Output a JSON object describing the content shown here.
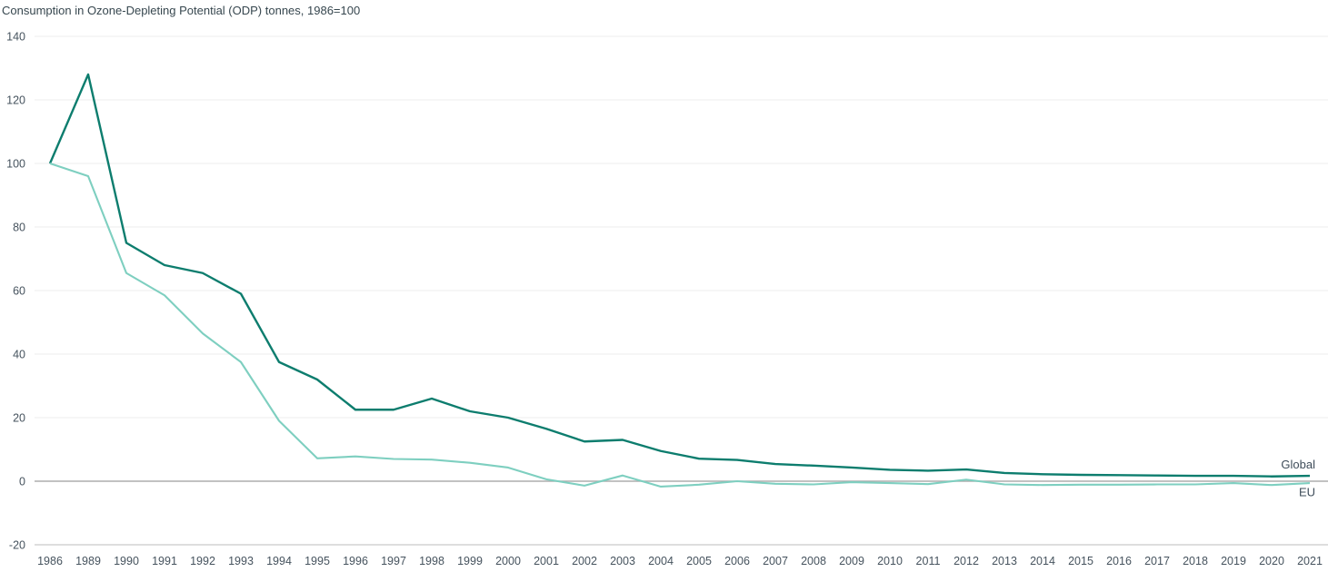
{
  "page": {
    "title": "Consumption in Ozone-Depleting Potential (ODP) tonnes, 1986=100"
  },
  "chart_data": {
    "type": "line",
    "title": "Consumption in Ozone-Depleting Potential (ODP) tonnes, 1986=100",
    "categories": [
      "1986",
      "1989",
      "1990",
      "1991",
      "1992",
      "1993",
      "1994",
      "1995",
      "1996",
      "1997",
      "1998",
      "1999",
      "2000",
      "2001",
      "2002",
      "2003",
      "2004",
      "2005",
      "2006",
      "2007",
      "2008",
      "2009",
      "2010",
      "2011",
      "2012",
      "2013",
      "2014",
      "2015",
      "2016",
      "2017",
      "2018",
      "2019",
      "2020",
      "2021"
    ],
    "series": [
      {
        "name": "Global",
        "color": "#0d7d6e",
        "values": [
          100,
          128,
          75,
          68,
          65.5,
          59,
          37.5,
          32,
          22.5,
          22.5,
          26,
          22,
          20,
          16.5,
          12.5,
          13,
          9.5,
          7.1,
          6.7,
          5.4,
          4.9,
          4.3,
          3.6,
          3.3,
          3.7,
          2.6,
          2.2,
          2.0,
          1.9,
          1.8,
          1.7,
          1.7,
          1.5,
          1.7
        ]
      },
      {
        "name": "EU",
        "color": "#7ecfc0",
        "values": [
          100,
          96,
          65.5,
          58.5,
          46.5,
          37.5,
          19,
          7.2,
          7.8,
          7,
          6.8,
          5.8,
          4.3,
          0.6,
          -1.4,
          1.8,
          -1.7,
          -1.1,
          0,
          -0.8,
          -1,
          -0.3,
          -0.6,
          -0.9,
          0.5,
          -1,
          -1.2,
          -1.1,
          -1.1,
          -1,
          -1,
          -0.6,
          -1.2,
          -0.6
        ]
      }
    ],
    "xlabel": "",
    "ylabel": "",
    "ylim": [
      -20,
      140
    ],
    "yticks": [
      140,
      120,
      100,
      80,
      60,
      40,
      20,
      0,
      -20
    ],
    "grid": true,
    "legend_position": "right-end-of-lines",
    "axis_colors": {
      "grid_line": "#ececec",
      "zero_line": "#aeaeae",
      "bottom_line": "#c9c9c9",
      "tick_text": "#46535e",
      "series_label_text": "#3e4c59"
    }
  }
}
